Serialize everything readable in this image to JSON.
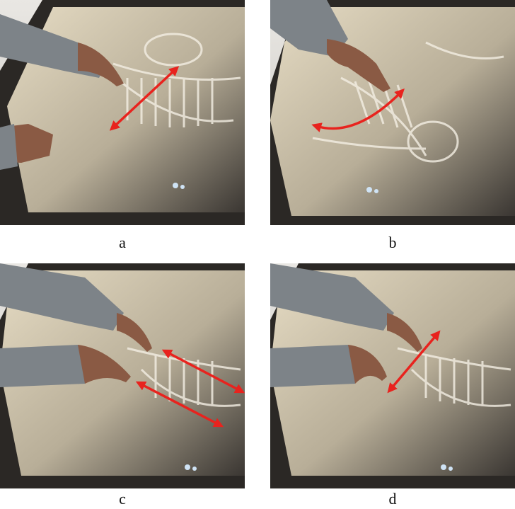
{
  "panels": [
    {
      "label": "a",
      "gesture_arrow_color": "#e8231e"
    },
    {
      "label": "b",
      "gesture_arrow_color": "#e8231e"
    },
    {
      "label": "c",
      "gesture_arrow_color": "#e8231e"
    },
    {
      "label": "d",
      "gesture_arrow_color": "#e8231e"
    }
  ],
  "colors": {
    "table_frame": "#2b2825",
    "screen_glow": "#d9cfb8",
    "sleeve": "#7d8388",
    "skin": "#8a5a44",
    "arrow": "#e8231e"
  }
}
